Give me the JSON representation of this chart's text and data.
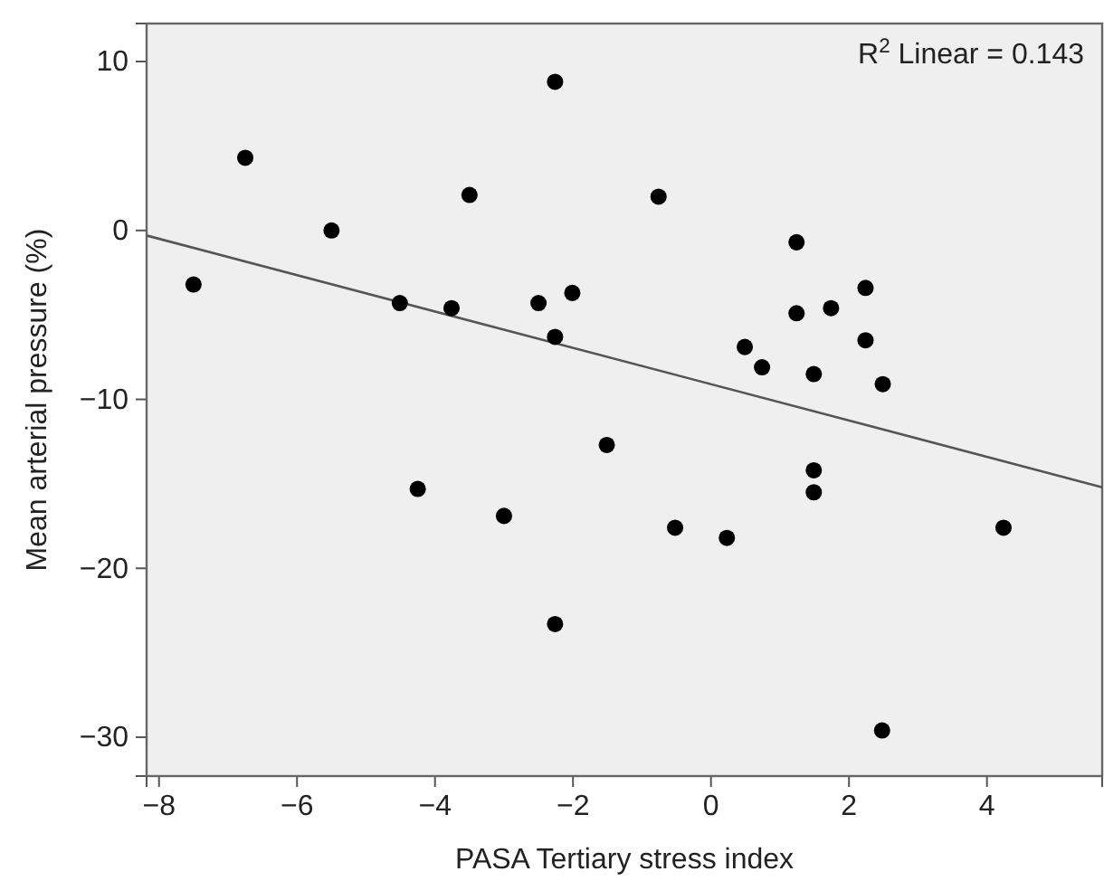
{
  "chart_data": {
    "type": "scatter",
    "xlabel": "PASA Tertiary stress index",
    "ylabel": "Mean arterial pressure (%)",
    "annotations": [
      "R$^{2}$ Linear = 0.143"
    ],
    "xlim": [
      -8.18,
      5.67
    ],
    "ylim": [
      -32.3,
      12.25
    ],
    "xticks": [
      -8,
      -6,
      -4,
      -2,
      0,
      2,
      4
    ],
    "yticks": [
      -30,
      -20,
      -10,
      0,
      10
    ],
    "marker": "circle",
    "grid": false,
    "series": [
      {
        "color": "#000000",
        "x": [
          -7.5,
          -6.75,
          -5.5,
          -4.51,
          -3.76,
          -3.5,
          -2.5,
          -2.01,
          -2.26,
          -2.26,
          -1.51,
          -4.25,
          -3.0,
          -2.26,
          -0.76,
          1.24,
          2.24,
          1.24,
          1.74,
          2.24,
          0.49,
          0.74,
          1.49,
          2.49,
          1.49,
          1.49,
          -0.52,
          0.23,
          4.24,
          2.48
        ],
        "values": [
          -3.2,
          4.3,
          0.0,
          -4.3,
          -4.6,
          2.1,
          -4.3,
          -3.7,
          -6.3,
          8.8,
          -12.7,
          -15.3,
          -16.9,
          -23.3,
          2.0,
          -0.7,
          -3.4,
          -4.9,
          -4.6,
          -6.5,
          -6.9,
          -8.1,
          -8.5,
          -9.1,
          -14.2,
          -15.5,
          -17.6,
          -18.2,
          -17.6,
          -29.6
        ]
      },
      {
        "type": "line",
        "color": "#555555",
        "line_style": "solid",
        "marker": "none",
        "x": [
          -8.18,
          5.67
        ],
        "values": [
          -0.3,
          -15.2
        ]
      }
    ]
  }
}
